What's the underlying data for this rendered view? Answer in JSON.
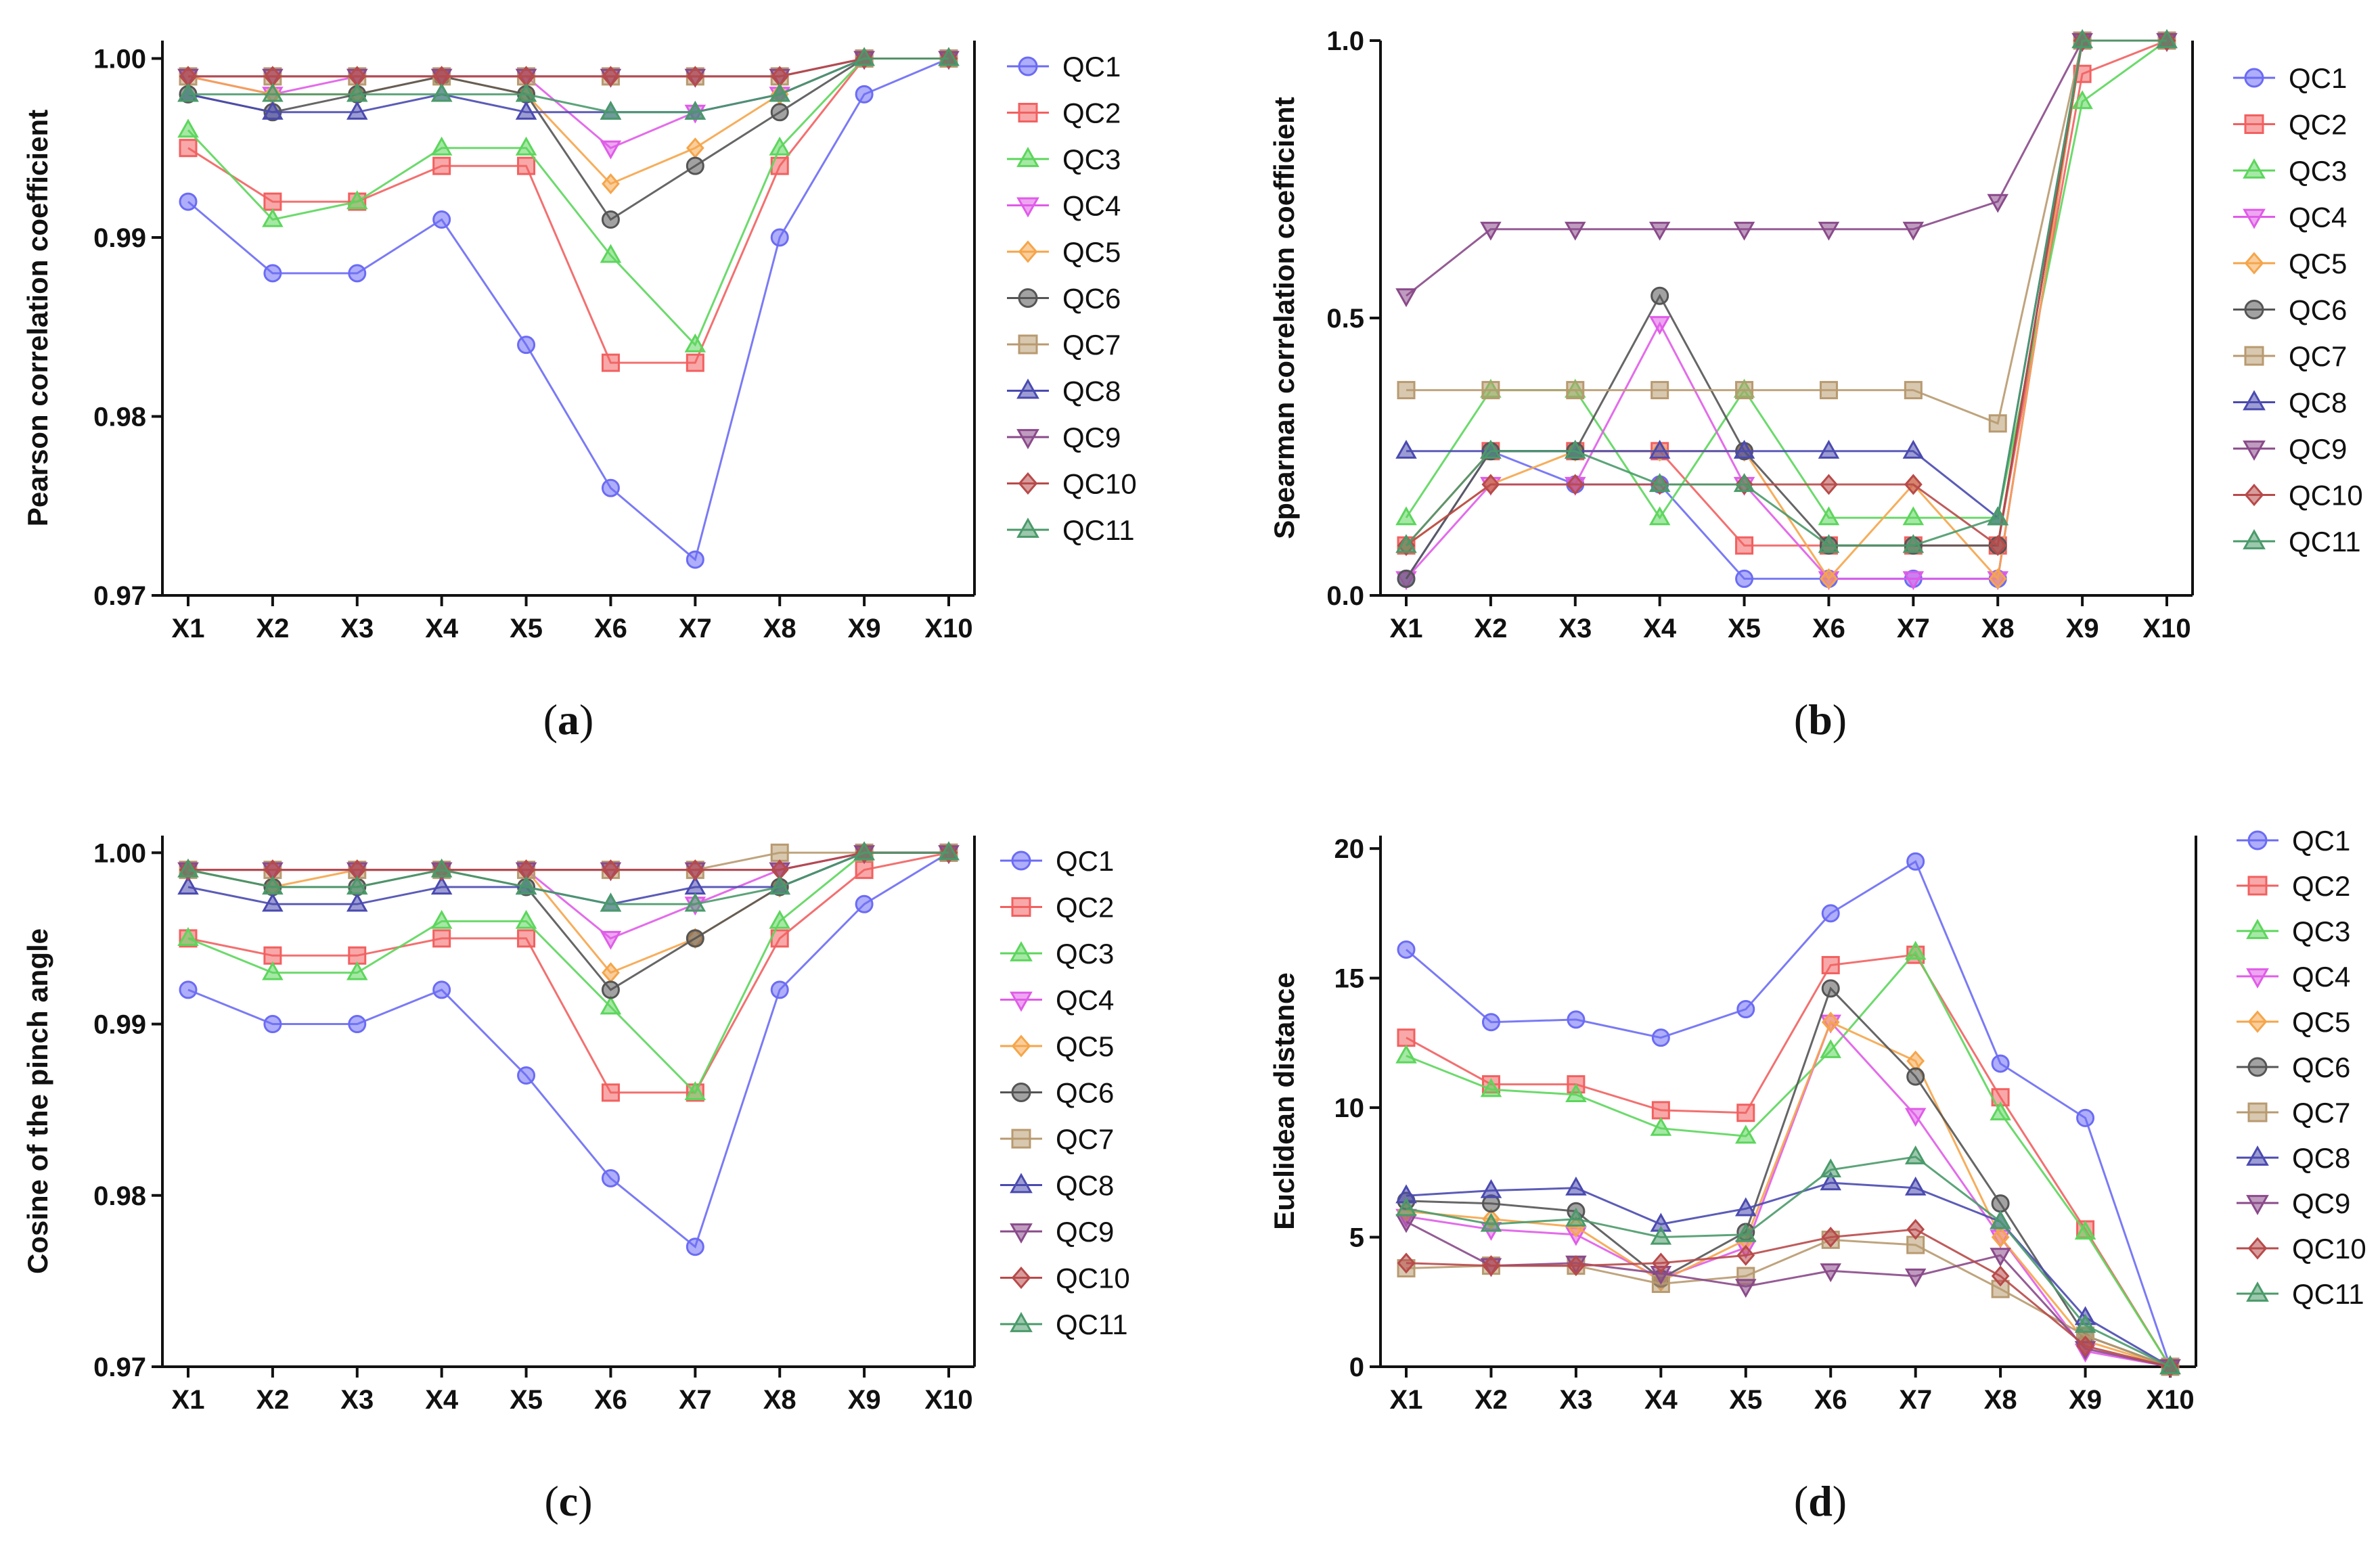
{
  "figure": {
    "background": "#ffffff"
  },
  "series_styles": [
    {
      "name": "QC1",
      "color": "#6b6bf5",
      "marker": "circle"
    },
    {
      "name": "QC2",
      "color": "#f26060",
      "marker": "square"
    },
    {
      "name": "QC3",
      "color": "#5cd65c",
      "marker": "triangle-up"
    },
    {
      "name": "QC4",
      "color": "#e05ce8",
      "marker": "triangle-down"
    },
    {
      "name": "QC5",
      "color": "#f5a54a",
      "marker": "diamond"
    },
    {
      "name": "QC6",
      "color": "#555555",
      "marker": "circle"
    },
    {
      "name": "QC7",
      "color": "#b89a70",
      "marker": "square"
    },
    {
      "name": "QC8",
      "color": "#4a4ab0",
      "marker": "triangle-up"
    },
    {
      "name": "QC9",
      "color": "#8a4a8a",
      "marker": "triangle-down"
    },
    {
      "name": "QC10",
      "color": "#b84a4a",
      "marker": "diamond"
    },
    {
      "name": "QC11",
      "color": "#4a9a6a",
      "marker": "triangle-up"
    }
  ],
  "chart_data": [
    {
      "id": "a",
      "type": "line",
      "caption_letter": "a",
      "ylabel": "Pearson correlation coefficient",
      "xlabel": "",
      "categories": [
        "X1",
        "X2",
        "X3",
        "X4",
        "X5",
        "X6",
        "X7",
        "X8",
        "X9",
        "X10"
      ],
      "ylim": [
        0.97,
        1.001
      ],
      "yticks": [
        0.97,
        0.98,
        0.99,
        1.0
      ],
      "ytick_labels": [
        "0.97",
        "0.98",
        "0.99",
        "1.00"
      ],
      "legend": "right",
      "series": [
        {
          "name": "QC1",
          "values": [
            0.992,
            0.988,
            0.988,
            0.991,
            0.984,
            0.976,
            0.972,
            0.99,
            0.998,
            1.0
          ]
        },
        {
          "name": "QC2",
          "values": [
            0.995,
            0.992,
            0.992,
            0.994,
            0.994,
            0.983,
            0.983,
            0.994,
            1.0,
            1.0
          ]
        },
        {
          "name": "QC3",
          "values": [
            0.996,
            0.991,
            0.992,
            0.995,
            0.995,
            0.989,
            0.984,
            0.995,
            1.0,
            1.0
          ]
        },
        {
          "name": "QC4",
          "values": [
            0.999,
            0.998,
            0.999,
            0.999,
            0.999,
            0.995,
            0.997,
            0.998,
            1.0,
            1.0
          ]
        },
        {
          "name": "QC5",
          "values": [
            0.999,
            0.998,
            0.998,
            0.999,
            0.998,
            0.993,
            0.995,
            0.998,
            1.0,
            1.0
          ]
        },
        {
          "name": "QC6",
          "values": [
            0.998,
            0.997,
            0.998,
            0.999,
            0.998,
            0.991,
            0.994,
            0.997,
            1.0,
            1.0
          ]
        },
        {
          "name": "QC7",
          "values": [
            0.999,
            0.999,
            0.999,
            0.999,
            0.999,
            0.999,
            0.999,
            0.999,
            1.0,
            1.0
          ]
        },
        {
          "name": "QC8",
          "values": [
            0.998,
            0.997,
            0.997,
            0.998,
            0.997,
            0.997,
            0.997,
            0.998,
            1.0,
            1.0
          ]
        },
        {
          "name": "QC9",
          "values": [
            0.999,
            0.999,
            0.999,
            0.999,
            0.999,
            0.999,
            0.999,
            0.999,
            1.0,
            1.0
          ]
        },
        {
          "name": "QC10",
          "values": [
            0.999,
            0.999,
            0.999,
            0.999,
            0.999,
            0.999,
            0.999,
            0.999,
            1.0,
            1.0
          ]
        },
        {
          "name": "QC11",
          "values": [
            0.998,
            0.998,
            0.998,
            0.998,
            0.998,
            0.997,
            0.997,
            0.998,
            1.0,
            1.0
          ]
        }
      ]
    },
    {
      "id": "b",
      "type": "line",
      "caption_letter": "b",
      "ylabel": "Spearman correlation coefficient",
      "xlabel": "",
      "categories": [
        "X1",
        "X2",
        "X3",
        "X4",
        "X5",
        "X6",
        "X7",
        "X8",
        "X9",
        "X10"
      ],
      "ylim": [
        0.0,
        1.0
      ],
      "yticks": [
        0.0,
        0.5,
        1.0
      ],
      "ytick_labels": [
        "0.0",
        "0.5",
        "1.0"
      ],
      "legend": "right",
      "series": [
        {
          "name": "QC1",
          "values": [
            0.03,
            0.26,
            0.2,
            0.2,
            0.03,
            0.03,
            0.03,
            0.03,
            1.0,
            1.0
          ]
        },
        {
          "name": "QC2",
          "values": [
            0.09,
            0.26,
            0.26,
            0.26,
            0.09,
            0.09,
            0.09,
            0.09,
            0.94,
            1.0
          ]
        },
        {
          "name": "QC3",
          "values": [
            0.14,
            0.37,
            0.37,
            0.14,
            0.37,
            0.14,
            0.14,
            0.14,
            0.89,
            1.0
          ]
        },
        {
          "name": "QC4",
          "values": [
            0.03,
            0.2,
            0.2,
            0.49,
            0.2,
            0.03,
            0.03,
            0.03,
            1.0,
            1.0
          ]
        },
        {
          "name": "QC5",
          "values": [
            0.09,
            0.2,
            0.26,
            0.26,
            0.26,
            0.03,
            0.2,
            0.03,
            1.0,
            1.0
          ]
        },
        {
          "name": "QC6",
          "values": [
            0.03,
            0.26,
            0.26,
            0.54,
            0.26,
            0.09,
            0.09,
            0.09,
            1.0,
            1.0
          ]
        },
        {
          "name": "QC7",
          "values": [
            0.37,
            0.37,
            0.37,
            0.37,
            0.37,
            0.37,
            0.37,
            0.31,
            1.0,
            1.0
          ]
        },
        {
          "name": "QC8",
          "values": [
            0.26,
            0.26,
            0.26,
            0.26,
            0.26,
            0.26,
            0.26,
            0.14,
            1.0,
            1.0
          ]
        },
        {
          "name": "QC9",
          "values": [
            0.54,
            0.66,
            0.66,
            0.66,
            0.66,
            0.66,
            0.66,
            0.71,
            1.0,
            1.0
          ]
        },
        {
          "name": "QC10",
          "values": [
            0.09,
            0.2,
            0.2,
            0.2,
            0.2,
            0.2,
            0.2,
            0.09,
            1.0,
            1.0
          ]
        },
        {
          "name": "QC11",
          "values": [
            0.09,
            0.26,
            0.26,
            0.2,
            0.2,
            0.09,
            0.09,
            0.14,
            1.0,
            1.0
          ]
        }
      ]
    },
    {
      "id": "c",
      "type": "line",
      "caption_letter": "c",
      "ylabel": "Cosine of the pinch angle",
      "xlabel": "",
      "categories": [
        "X1",
        "X2",
        "X3",
        "X4",
        "X5",
        "X6",
        "X7",
        "X8",
        "X9",
        "X10"
      ],
      "ylim": [
        0.97,
        1.001
      ],
      "yticks": [
        0.97,
        0.98,
        0.99,
        1.0
      ],
      "ytick_labels": [
        "0.97",
        "0.98",
        "0.99",
        "1.00"
      ],
      "legend": "right",
      "series": [
        {
          "name": "QC1",
          "values": [
            0.992,
            0.99,
            0.99,
            0.992,
            0.987,
            0.981,
            0.977,
            0.992,
            0.997,
            1.0
          ]
        },
        {
          "name": "QC2",
          "values": [
            0.995,
            0.994,
            0.994,
            0.995,
            0.995,
            0.986,
            0.986,
            0.995,
            0.999,
            1.0
          ]
        },
        {
          "name": "QC3",
          "values": [
            0.995,
            0.993,
            0.993,
            0.996,
            0.996,
            0.991,
            0.986,
            0.996,
            1.0,
            1.0
          ]
        },
        {
          "name": "QC4",
          "values": [
            0.999,
            0.999,
            0.999,
            0.999,
            0.999,
            0.995,
            0.997,
            0.999,
            1.0,
            1.0
          ]
        },
        {
          "name": "QC5",
          "values": [
            0.999,
            0.998,
            0.999,
            0.999,
            0.999,
            0.993,
            0.995,
            0.998,
            1.0,
            1.0
          ]
        },
        {
          "name": "QC6",
          "values": [
            0.999,
            0.998,
            0.998,
            0.999,
            0.998,
            0.992,
            0.995,
            0.998,
            1.0,
            1.0
          ]
        },
        {
          "name": "QC7",
          "values": [
            0.999,
            0.999,
            0.999,
            0.999,
            0.999,
            0.999,
            0.999,
            1.0,
            1.0,
            1.0
          ]
        },
        {
          "name": "QC8",
          "values": [
            0.998,
            0.997,
            0.997,
            0.998,
            0.998,
            0.997,
            0.998,
            0.998,
            1.0,
            1.0
          ]
        },
        {
          "name": "QC9",
          "values": [
            0.999,
            0.999,
            0.999,
            0.999,
            0.999,
            0.999,
            0.999,
            0.999,
            1.0,
            1.0
          ]
        },
        {
          "name": "QC10",
          "values": [
            0.999,
            0.999,
            0.999,
            0.999,
            0.999,
            0.999,
            0.999,
            0.999,
            1.0,
            1.0
          ]
        },
        {
          "name": "QC11",
          "values": [
            0.999,
            0.998,
            0.998,
            0.999,
            0.998,
            0.997,
            0.997,
            0.998,
            1.0,
            1.0
          ]
        }
      ]
    },
    {
      "id": "d",
      "type": "line",
      "caption_letter": "d",
      "ylabel": "Euclidean distance",
      "xlabel": "",
      "categories": [
        "X1",
        "X2",
        "X3",
        "X4",
        "X5",
        "X6",
        "X7",
        "X8",
        "X9",
        "X10"
      ],
      "ylim": [
        0,
        20.5
      ],
      "yticks": [
        0,
        5,
        10,
        15,
        20
      ],
      "ytick_labels": [
        "0",
        "5",
        "10",
        "15",
        "20"
      ],
      "legend": "right",
      "series": [
        {
          "name": "QC1",
          "values": [
            16.1,
            13.3,
            13.4,
            12.7,
            13.8,
            17.5,
            19.5,
            11.7,
            9.6,
            0.0
          ]
        },
        {
          "name": "QC2",
          "values": [
            12.7,
            10.9,
            10.9,
            9.9,
            9.8,
            15.5,
            15.9,
            10.4,
            5.3,
            0.0
          ]
        },
        {
          "name": "QC3",
          "values": [
            12.0,
            10.7,
            10.5,
            9.2,
            8.9,
            12.2,
            16.0,
            9.8,
            5.2,
            0.0
          ]
        },
        {
          "name": "QC4",
          "values": [
            5.8,
            5.3,
            5.1,
            3.4,
            4.6,
            13.3,
            9.7,
            5.0,
            0.6,
            0.0
          ]
        },
        {
          "name": "QC5",
          "values": [
            6.0,
            5.7,
            5.4,
            3.3,
            4.9,
            13.3,
            11.8,
            5.0,
            1.0,
            0.0
          ]
        },
        {
          "name": "QC6",
          "values": [
            6.4,
            6.3,
            6.0,
            3.4,
            5.2,
            14.6,
            11.2,
            6.3,
            1.2,
            0.0
          ]
        },
        {
          "name": "QC7",
          "values": [
            3.8,
            3.9,
            3.9,
            3.2,
            3.5,
            4.9,
            4.7,
            3.0,
            1.2,
            0.0
          ]
        },
        {
          "name": "QC8",
          "values": [
            6.6,
            6.8,
            6.9,
            5.5,
            6.1,
            7.1,
            6.9,
            5.6,
            1.9,
            0.0
          ]
        },
        {
          "name": "QC9",
          "values": [
            5.6,
            3.9,
            4.0,
            3.6,
            3.1,
            3.7,
            3.5,
            4.3,
            0.7,
            0.0
          ]
        },
        {
          "name": "QC10",
          "values": [
            4.0,
            3.9,
            3.9,
            4.0,
            4.3,
            5.0,
            5.3,
            3.5,
            0.8,
            0.0
          ]
        },
        {
          "name": "QC11",
          "values": [
            6.1,
            5.5,
            5.7,
            5.0,
            5.1,
            7.6,
            8.1,
            5.6,
            1.6,
            0.0
          ]
        }
      ]
    }
  ]
}
